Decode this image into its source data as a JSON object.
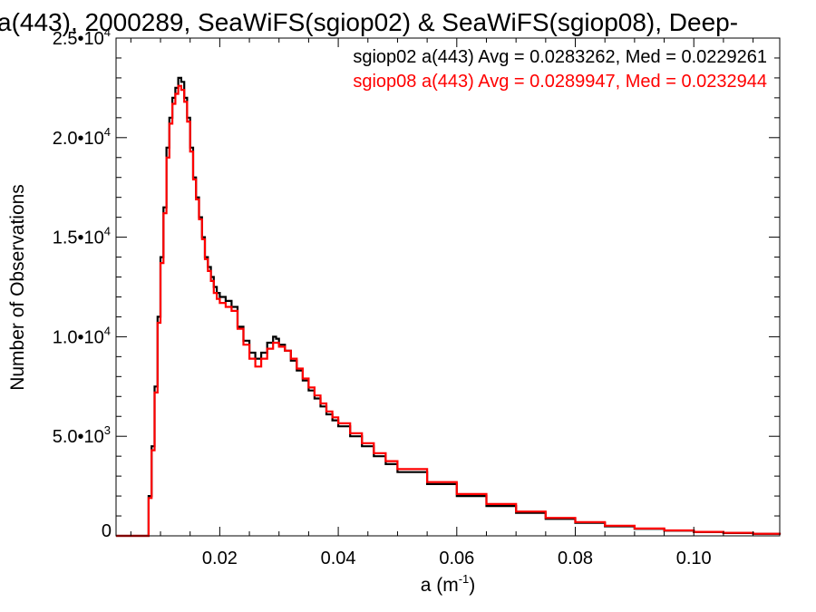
{
  "chart_data": {
    "type": "histogram-step",
    "title": "a(443), 2000289, SeaWiFS(sgiop02) & SeaWiFS(sgiop08), Deep-",
    "xlabel": "a (m",
    "xlabel_sup": "-1",
    "xlabel_end": ")",
    "ylabel": "Number of Observations",
    "xlim": [
      0.0025,
      0.1145
    ],
    "ylim": [
      0,
      25000
    ],
    "x_ticks": [
      {
        "value": 0.02,
        "label": "0.02"
      },
      {
        "value": 0.04,
        "label": "0.04"
      },
      {
        "value": 0.06,
        "label": "0.06"
      },
      {
        "value": 0.08,
        "label": "0.08"
      },
      {
        "value": 0.1,
        "label": "0.10"
      }
    ],
    "y_ticks": [
      {
        "value": 0,
        "label": "0",
        "sup": ""
      },
      {
        "value": 5000,
        "label": "5.0•10",
        "sup": "3"
      },
      {
        "value": 10000,
        "label": "1.0•10",
        "sup": "4"
      },
      {
        "value": 15000,
        "label": "1.5•10",
        "sup": "4"
      },
      {
        "value": 20000,
        "label": "2.0•10",
        "sup": "4"
      },
      {
        "value": 25000,
        "label": "2.5•10",
        "sup": "4"
      }
    ],
    "series": [
      {
        "name": "sgiop02",
        "legend": "sgiop02 a(443) Avg = 0.0283262, Med = 0.0229261",
        "color": "#000000",
        "x": [
          0.0025,
          0.0075,
          0.008,
          0.0085,
          0.009,
          0.0095,
          0.01,
          0.0105,
          0.011,
          0.0115,
          0.012,
          0.0125,
          0.013,
          0.0135,
          0.014,
          0.0145,
          0.015,
          0.0155,
          0.016,
          0.0165,
          0.017,
          0.0175,
          0.018,
          0.0185,
          0.019,
          0.0195,
          0.02,
          0.021,
          0.022,
          0.023,
          0.024,
          0.025,
          0.026,
          0.027,
          0.028,
          0.029,
          0.0295,
          0.03,
          0.031,
          0.032,
          0.033,
          0.034,
          0.035,
          0.036,
          0.037,
          0.038,
          0.039,
          0.04,
          0.042,
          0.044,
          0.046,
          0.048,
          0.05,
          0.055,
          0.06,
          0.065,
          0.07,
          0.075,
          0.08,
          0.085,
          0.09,
          0.095,
          0.1,
          0.105,
          0.11,
          0.1145
        ],
        "y": [
          0,
          0,
          2000,
          4500,
          7500,
          11000,
          14000,
          16500,
          19500,
          21000,
          22000,
          22500,
          23000,
          22800,
          22000,
          21000,
          19500,
          18000,
          17000,
          16000,
          15000,
          14000,
          13500,
          13000,
          12500,
          12200,
          12000,
          11800,
          11500,
          10500,
          9800,
          9200,
          8900,
          9200,
          9700,
          10000,
          9900,
          9600,
          9300,
          8800,
          8300,
          7800,
          7300,
          6900,
          6500,
          6100,
          5800,
          5500,
          5000,
          4500,
          4000,
          3600,
          3200,
          2600,
          2000,
          1500,
          1150,
          850,
          650,
          480,
          350,
          260,
          190,
          140,
          100,
          60
        ]
      },
      {
        "name": "sgiop08",
        "legend": "sgiop08 a(443) Avg = 0.0289947, Med = 0.0232944",
        "color": "#ff0000",
        "x": [
          0.0025,
          0.0075,
          0.008,
          0.0085,
          0.009,
          0.0095,
          0.01,
          0.0105,
          0.011,
          0.0115,
          0.012,
          0.0125,
          0.013,
          0.0135,
          0.014,
          0.0145,
          0.015,
          0.0155,
          0.016,
          0.0165,
          0.017,
          0.0175,
          0.018,
          0.0185,
          0.019,
          0.0195,
          0.02,
          0.021,
          0.022,
          0.023,
          0.024,
          0.025,
          0.026,
          0.027,
          0.028,
          0.029,
          0.0295,
          0.03,
          0.031,
          0.032,
          0.033,
          0.034,
          0.035,
          0.036,
          0.037,
          0.038,
          0.039,
          0.04,
          0.042,
          0.044,
          0.046,
          0.048,
          0.05,
          0.055,
          0.06,
          0.065,
          0.07,
          0.075,
          0.08,
          0.085,
          0.09,
          0.095,
          0.1,
          0.105,
          0.11,
          0.1145
        ],
        "y": [
          0,
          0,
          1900,
          4300,
          7200,
          10700,
          13700,
          16200,
          19000,
          20700,
          21700,
          22200,
          22600,
          22400,
          21800,
          20800,
          19300,
          17900,
          16900,
          15900,
          14900,
          13900,
          13300,
          12800,
          12200,
          11900,
          11700,
          11500,
          11300,
          10400,
          9600,
          8900,
          8500,
          8900,
          9400,
          9700,
          9700,
          9500,
          9300,
          8900,
          8400,
          7900,
          7450,
          7050,
          6650,
          6250,
          5950,
          5650,
          5150,
          4650,
          4150,
          3750,
          3350,
          2700,
          2100,
          1600,
          1220,
          900,
          690,
          510,
          370,
          275,
          200,
          150,
          105,
          65
        ]
      }
    ]
  }
}
